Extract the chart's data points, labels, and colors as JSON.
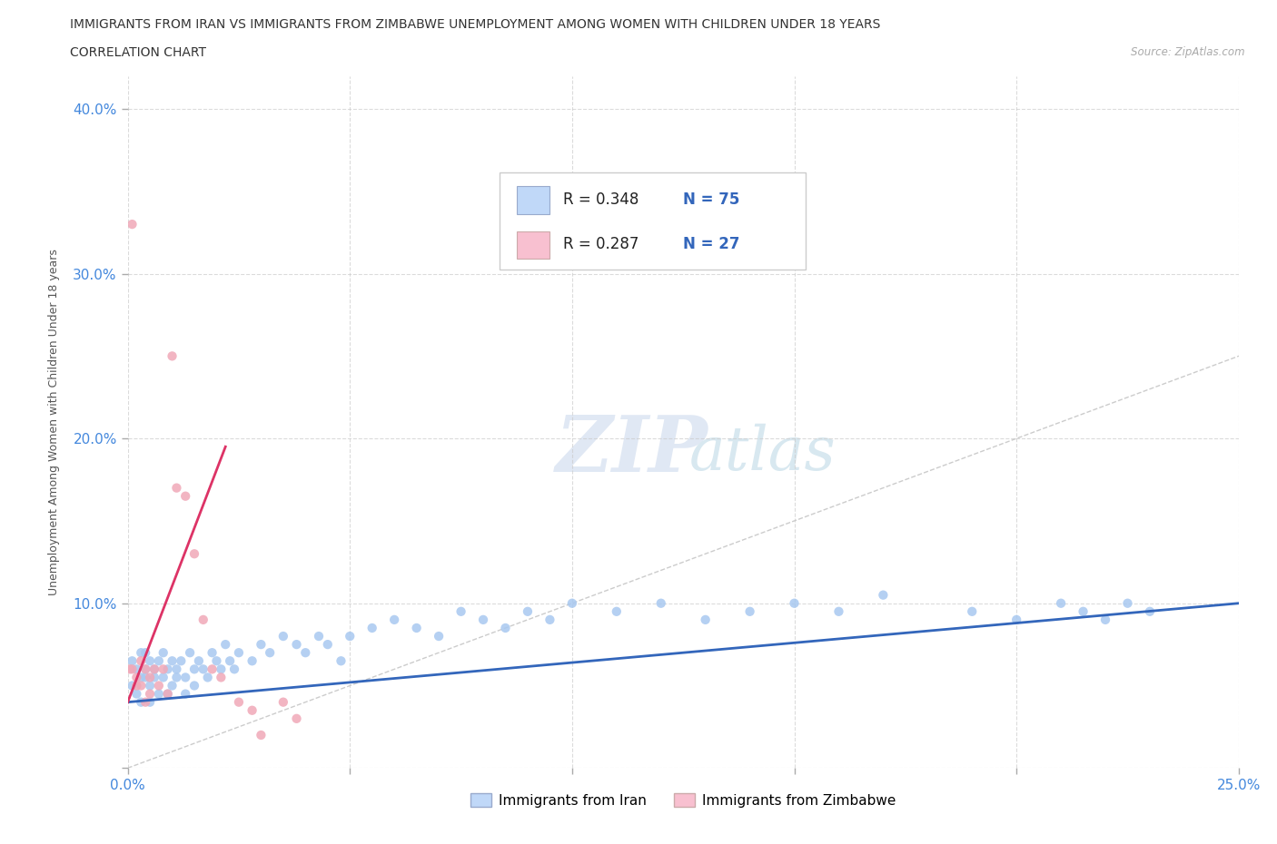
{
  "title_line1": "IMMIGRANTS FROM IRAN VS IMMIGRANTS FROM ZIMBABWE UNEMPLOYMENT AMONG WOMEN WITH CHILDREN UNDER 18 YEARS",
  "title_line2": "CORRELATION CHART",
  "source_text": "Source: ZipAtlas.com",
  "ylabel": "Unemployment Among Women with Children Under 18 years",
  "watermark_zip": "ZIP",
  "watermark_atlas": "atlas",
  "legend_label1": "Immigrants from Iran",
  "legend_label2": "Immigrants from Zimbabwe",
  "r1": 0.348,
  "n1": 75,
  "r2": 0.287,
  "n2": 27,
  "xlim": [
    0.0,
    0.25
  ],
  "ylim": [
    0.0,
    0.42
  ],
  "color_iran": "#a8c8f0",
  "color_zimbabwe": "#f0a8b8",
  "line_color_iran": "#3366bb",
  "line_color_zimbabwe": "#dd3366",
  "legend_box_color1": "#c0d8f8",
  "legend_box_color2": "#f8c0d0",
  "grid_color": "#cccccc",
  "background_color": "#ffffff",
  "iran_x": [
    0.001,
    0.001,
    0.002,
    0.002,
    0.003,
    0.003,
    0.003,
    0.004,
    0.004,
    0.004,
    0.005,
    0.005,
    0.005,
    0.006,
    0.006,
    0.007,
    0.007,
    0.008,
    0.008,
    0.009,
    0.009,
    0.01,
    0.01,
    0.011,
    0.011,
    0.012,
    0.013,
    0.013,
    0.014,
    0.015,
    0.015,
    0.016,
    0.017,
    0.018,
    0.019,
    0.02,
    0.021,
    0.022,
    0.023,
    0.024,
    0.025,
    0.028,
    0.03,
    0.032,
    0.035,
    0.038,
    0.04,
    0.043,
    0.045,
    0.048,
    0.05,
    0.055,
    0.06,
    0.065,
    0.07,
    0.075,
    0.08,
    0.085,
    0.09,
    0.095,
    0.1,
    0.11,
    0.12,
    0.13,
    0.14,
    0.15,
    0.16,
    0.17,
    0.19,
    0.2,
    0.21,
    0.215,
    0.22,
    0.225,
    0.23
  ],
  "iran_y": [
    0.05,
    0.065,
    0.045,
    0.06,
    0.055,
    0.07,
    0.04,
    0.06,
    0.055,
    0.07,
    0.05,
    0.065,
    0.04,
    0.06,
    0.055,
    0.065,
    0.045,
    0.07,
    0.055,
    0.06,
    0.045,
    0.065,
    0.05,
    0.06,
    0.055,
    0.065,
    0.055,
    0.045,
    0.07,
    0.06,
    0.05,
    0.065,
    0.06,
    0.055,
    0.07,
    0.065,
    0.06,
    0.075,
    0.065,
    0.06,
    0.07,
    0.065,
    0.075,
    0.07,
    0.08,
    0.075,
    0.07,
    0.08,
    0.075,
    0.065,
    0.08,
    0.085,
    0.09,
    0.085,
    0.08,
    0.095,
    0.09,
    0.085,
    0.095,
    0.09,
    0.1,
    0.095,
    0.1,
    0.09,
    0.095,
    0.1,
    0.095,
    0.105,
    0.095,
    0.09,
    0.1,
    0.095,
    0.09,
    0.1,
    0.095
  ],
  "zimbabwe_x": [
    0.0005,
    0.001,
    0.001,
    0.002,
    0.002,
    0.003,
    0.003,
    0.004,
    0.004,
    0.005,
    0.005,
    0.006,
    0.007,
    0.008,
    0.009,
    0.01,
    0.011,
    0.013,
    0.015,
    0.017,
    0.019,
    0.021,
    0.025,
    0.028,
    0.03,
    0.035,
    0.038
  ],
  "zimbabwe_y": [
    0.06,
    0.33,
    0.06,
    0.055,
    0.05,
    0.065,
    0.05,
    0.06,
    0.04,
    0.055,
    0.045,
    0.06,
    0.05,
    0.06,
    0.045,
    0.25,
    0.17,
    0.165,
    0.13,
    0.09,
    0.06,
    0.055,
    0.04,
    0.035,
    0.02,
    0.04,
    0.03
  ],
  "iran_line_x": [
    0.0,
    0.25
  ],
  "iran_line_y": [
    0.04,
    0.1
  ],
  "zim_line_x": [
    0.0,
    0.022
  ],
  "zim_line_y": [
    0.04,
    0.195
  ]
}
